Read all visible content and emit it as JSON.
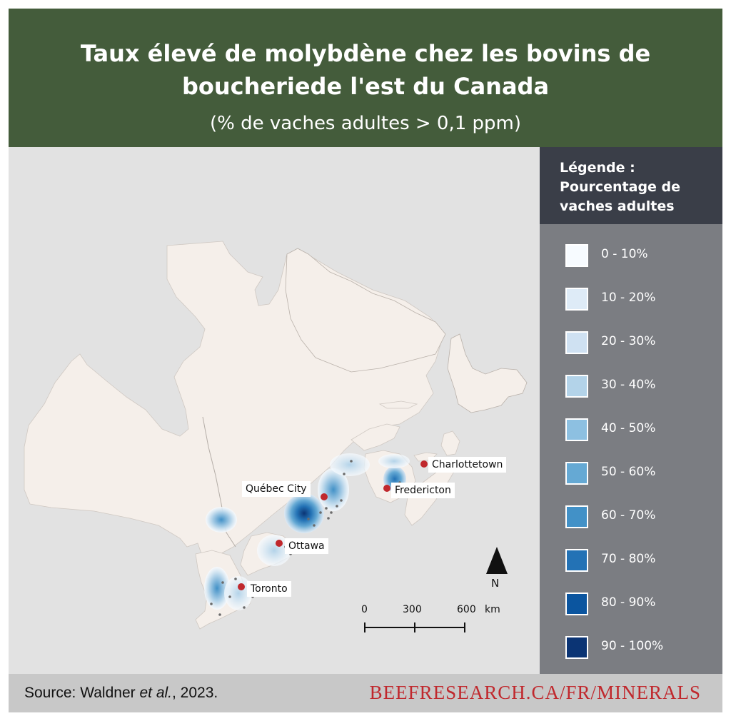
{
  "header": {
    "title_line1": "Taux élevé de molybdène chez les bovins de",
    "title_line2": "boucheriede l'est du Canada",
    "subtitle": "(% de vaches adultes > 0,1 ppm)"
  },
  "map": {
    "cities": [
      {
        "name": "Québec City"
      },
      {
        "name": "Charlottetown"
      },
      {
        "name": "Fredericton"
      },
      {
        "name": "Ottawa"
      },
      {
        "name": "Toronto"
      }
    ],
    "north_arrow_label": "N",
    "scale_bar": {
      "ticks": [
        "0",
        "300",
        "600"
      ],
      "unit": "km"
    },
    "colors": {
      "land": "#f5efea",
      "water": "#e2e2e2",
      "city_marker": "#c0282d",
      "sample_point": "#6b6b6b"
    }
  },
  "legend": {
    "title": "Légende : Pourcentage de vaches adultes",
    "items": [
      {
        "label": "0 - 10%",
        "color": "#f7fbff"
      },
      {
        "label": "10 - 20%",
        "color": "#deebf7"
      },
      {
        "label": "20 - 30%",
        "color": "#cfe1f2"
      },
      {
        "label": "30 - 40%",
        "color": "#b3d3e9"
      },
      {
        "label": "40 - 50%",
        "color": "#8dc0e1"
      },
      {
        "label": "50 - 60%",
        "color": "#65a9d4"
      },
      {
        "label": "60 - 70%",
        "color": "#4291c7"
      },
      {
        "label": "70 - 80%",
        "color": "#2372b5"
      },
      {
        "label": "80 - 90%",
        "color": "#0b559f"
      },
      {
        "label": "90 - 100%",
        "color": "#0b3474"
      }
    ]
  },
  "footer": {
    "source_prefix": "Source: Waldner ",
    "source_italic": "et al.",
    "source_suffix": ", 2023.",
    "website": "BEEFRESEARCH.CA/FR/MINERALS"
  }
}
